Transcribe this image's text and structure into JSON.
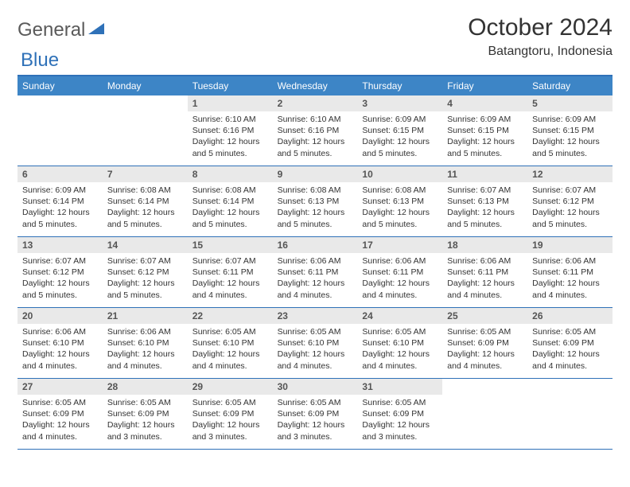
{
  "logo": {
    "part1": "General",
    "part2": "Blue"
  },
  "title": "October 2024",
  "location": "Batangtoru, Indonesia",
  "colors": {
    "header_bg": "#3d85c6",
    "header_text": "#ffffff",
    "border": "#2f71b8",
    "daynum_bg": "#e9e9e9",
    "daynum_text": "#555555",
    "body_text": "#333333",
    "logo_gray": "#5a5a5a",
    "logo_blue": "#2f71b8",
    "background": "#ffffff"
  },
  "typography": {
    "title_fontsize": 30,
    "location_fontsize": 16,
    "dayheader_fontsize": 12,
    "daynum_fontsize": 12,
    "details_fontsize": 10.5
  },
  "layout": {
    "columns": 7,
    "rows": 5,
    "leading_blanks": 2
  },
  "day_names": [
    "Sunday",
    "Monday",
    "Tuesday",
    "Wednesday",
    "Thursday",
    "Friday",
    "Saturday"
  ],
  "days": [
    {
      "n": 1,
      "sr": "6:10 AM",
      "ss": "6:16 PM",
      "dl": "12 hours and 5 minutes."
    },
    {
      "n": 2,
      "sr": "6:10 AM",
      "ss": "6:16 PM",
      "dl": "12 hours and 5 minutes."
    },
    {
      "n": 3,
      "sr": "6:09 AM",
      "ss": "6:15 PM",
      "dl": "12 hours and 5 minutes."
    },
    {
      "n": 4,
      "sr": "6:09 AM",
      "ss": "6:15 PM",
      "dl": "12 hours and 5 minutes."
    },
    {
      "n": 5,
      "sr": "6:09 AM",
      "ss": "6:15 PM",
      "dl": "12 hours and 5 minutes."
    },
    {
      "n": 6,
      "sr": "6:09 AM",
      "ss": "6:14 PM",
      "dl": "12 hours and 5 minutes."
    },
    {
      "n": 7,
      "sr": "6:08 AM",
      "ss": "6:14 PM",
      "dl": "12 hours and 5 minutes."
    },
    {
      "n": 8,
      "sr": "6:08 AM",
      "ss": "6:14 PM",
      "dl": "12 hours and 5 minutes."
    },
    {
      "n": 9,
      "sr": "6:08 AM",
      "ss": "6:13 PM",
      "dl": "12 hours and 5 minutes."
    },
    {
      "n": 10,
      "sr": "6:08 AM",
      "ss": "6:13 PM",
      "dl": "12 hours and 5 minutes."
    },
    {
      "n": 11,
      "sr": "6:07 AM",
      "ss": "6:13 PM",
      "dl": "12 hours and 5 minutes."
    },
    {
      "n": 12,
      "sr": "6:07 AM",
      "ss": "6:12 PM",
      "dl": "12 hours and 5 minutes."
    },
    {
      "n": 13,
      "sr": "6:07 AM",
      "ss": "6:12 PM",
      "dl": "12 hours and 5 minutes."
    },
    {
      "n": 14,
      "sr": "6:07 AM",
      "ss": "6:12 PM",
      "dl": "12 hours and 5 minutes."
    },
    {
      "n": 15,
      "sr": "6:07 AM",
      "ss": "6:11 PM",
      "dl": "12 hours and 4 minutes."
    },
    {
      "n": 16,
      "sr": "6:06 AM",
      "ss": "6:11 PM",
      "dl": "12 hours and 4 minutes."
    },
    {
      "n": 17,
      "sr": "6:06 AM",
      "ss": "6:11 PM",
      "dl": "12 hours and 4 minutes."
    },
    {
      "n": 18,
      "sr": "6:06 AM",
      "ss": "6:11 PM",
      "dl": "12 hours and 4 minutes."
    },
    {
      "n": 19,
      "sr": "6:06 AM",
      "ss": "6:11 PM",
      "dl": "12 hours and 4 minutes."
    },
    {
      "n": 20,
      "sr": "6:06 AM",
      "ss": "6:10 PM",
      "dl": "12 hours and 4 minutes."
    },
    {
      "n": 21,
      "sr": "6:06 AM",
      "ss": "6:10 PM",
      "dl": "12 hours and 4 minutes."
    },
    {
      "n": 22,
      "sr": "6:05 AM",
      "ss": "6:10 PM",
      "dl": "12 hours and 4 minutes."
    },
    {
      "n": 23,
      "sr": "6:05 AM",
      "ss": "6:10 PM",
      "dl": "12 hours and 4 minutes."
    },
    {
      "n": 24,
      "sr": "6:05 AM",
      "ss": "6:10 PM",
      "dl": "12 hours and 4 minutes."
    },
    {
      "n": 25,
      "sr": "6:05 AM",
      "ss": "6:09 PM",
      "dl": "12 hours and 4 minutes."
    },
    {
      "n": 26,
      "sr": "6:05 AM",
      "ss": "6:09 PM",
      "dl": "12 hours and 4 minutes."
    },
    {
      "n": 27,
      "sr": "6:05 AM",
      "ss": "6:09 PM",
      "dl": "12 hours and 4 minutes."
    },
    {
      "n": 28,
      "sr": "6:05 AM",
      "ss": "6:09 PM",
      "dl": "12 hours and 3 minutes."
    },
    {
      "n": 29,
      "sr": "6:05 AM",
      "ss": "6:09 PM",
      "dl": "12 hours and 3 minutes."
    },
    {
      "n": 30,
      "sr": "6:05 AM",
      "ss": "6:09 PM",
      "dl": "12 hours and 3 minutes."
    },
    {
      "n": 31,
      "sr": "6:05 AM",
      "ss": "6:09 PM",
      "dl": "12 hours and 3 minutes."
    }
  ],
  "labels": {
    "sunrise": "Sunrise:",
    "sunset": "Sunset:",
    "daylight": "Daylight:"
  }
}
